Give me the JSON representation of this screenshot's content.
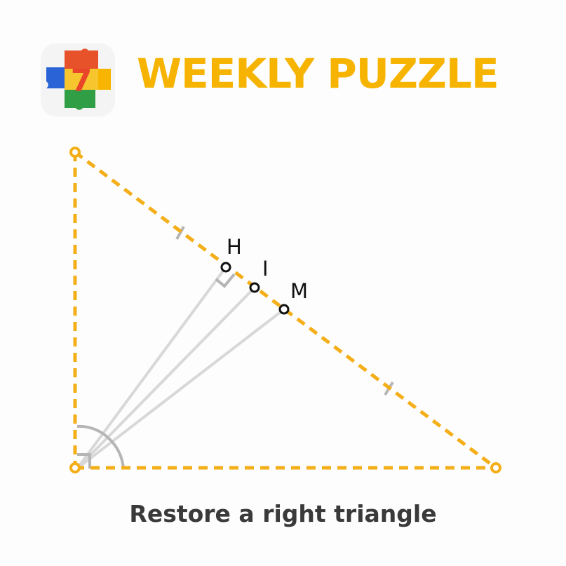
{
  "header": {
    "title": "WEEKLY PUZZLE",
    "logo_icon": "puzzle-seven-logo-icon"
  },
  "diagram": {
    "points": {
      "H": "H",
      "I": "I",
      "M": "M"
    },
    "colors": {
      "triangle": "#f4ae17",
      "lines": "#d6d6d6",
      "marks": "#b5b5b5",
      "points": "#111111"
    }
  },
  "caption": "Restore a right triangle"
}
